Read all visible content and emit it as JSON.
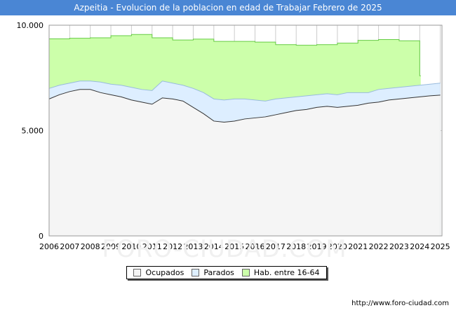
{
  "chart_data": {
    "type": "area",
    "title": "Azpeitia - Evolucion de la poblacion en edad de Trabajar Febrero de 2025",
    "xlabel": "",
    "ylabel": "",
    "xlim": [
      2006,
      2025.08
    ],
    "ylim": [
      0,
      10000
    ],
    "y_ticks": [
      0,
      5000,
      10000
    ],
    "y_tick_labels": [
      "0",
      "5.000",
      "10.000"
    ],
    "x_ticks": [
      2006,
      2007,
      2008,
      2009,
      2010,
      2011,
      2012,
      2013,
      2014,
      2015,
      2016,
      2017,
      2018,
      2019,
      2020,
      2021,
      2022,
      2023,
      2024,
      2025
    ],
    "x_tick_labels": [
      "2006",
      "2007",
      "2008",
      "2009",
      "2010",
      "2011",
      "2012",
      "2013",
      "2014",
      "2015",
      "2016",
      "2017",
      "2018",
      "2019",
      "2020",
      "2021",
      "2022",
      "2023",
      "2024",
      "2025"
    ],
    "grid": true,
    "series": [
      {
        "name": "Hab. entre 16-64",
        "color": "#ccffaa",
        "line_color": "#66cc44",
        "step": true,
        "x": [
          2006,
          2007,
          2008,
          2009,
          2010,
          2011,
          2012,
          2013,
          2014,
          2015,
          2016,
          2017,
          2018,
          2019,
          2020,
          2021,
          2022,
          2023,
          2024
        ],
        "values": [
          9350,
          9380,
          9400,
          9500,
          9560,
          9400,
          9300,
          9340,
          9230,
          9230,
          9200,
          9080,
          9050,
          9080,
          9150,
          9280,
          9320,
          9260,
          7600
        ]
      },
      {
        "name": "Parados",
        "color": "#ddeeff",
        "line_color": "#99bbdd",
        "x": [
          2006,
          2006.5,
          2007,
          2007.5,
          2008,
          2008.5,
          2009,
          2009.5,
          2010,
          2010.5,
          2011,
          2011.5,
          2012,
          2012.5,
          2013,
          2013.5,
          2014,
          2014.5,
          2015,
          2015.5,
          2016,
          2016.5,
          2017,
          2017.5,
          2018,
          2018.5,
          2019,
          2019.5,
          2020,
          2020.5,
          2021,
          2021.5,
          2022,
          2022.5,
          2023,
          2023.5,
          2024,
          2024.5,
          2025
        ],
        "values": [
          7000,
          7150,
          7250,
          7350,
          7350,
          7300,
          7200,
          7150,
          7050,
          6950,
          6900,
          7350,
          7250,
          7150,
          7000,
          6800,
          6500,
          6450,
          6500,
          6500,
          6450,
          6400,
          6500,
          6550,
          6600,
          6650,
          6700,
          6750,
          6700,
          6800,
          6800,
          6800,
          6950,
          7000,
          7050,
          7100,
          7150,
          7200,
          7250
        ]
      },
      {
        "name": "Ocupados",
        "color": "#f5f5f5",
        "line_color": "#333333",
        "x": [
          2006,
          2006.5,
          2007,
          2007.5,
          2008,
          2008.5,
          2009,
          2009.5,
          2010,
          2010.5,
          2011,
          2011.5,
          2012,
          2012.5,
          2013,
          2013.5,
          2014,
          2014.5,
          2015,
          2015.5,
          2016,
          2016.5,
          2017,
          2017.5,
          2018,
          2018.5,
          2019,
          2019.5,
          2020,
          2020.5,
          2021,
          2021.5,
          2022,
          2022.5,
          2023,
          2023.5,
          2024,
          2024.5,
          2025
        ],
        "values": [
          6500,
          6700,
          6850,
          6950,
          6950,
          6800,
          6700,
          6600,
          6450,
          6350,
          6250,
          6550,
          6500,
          6400,
          6100,
          5800,
          5450,
          5400,
          5450,
          5550,
          5600,
          5650,
          5750,
          5850,
          5950,
          6000,
          6100,
          6150,
          6100,
          6150,
          6200,
          6300,
          6350,
          6450,
          6500,
          6550,
          6600,
          6650,
          6680
        ]
      }
    ],
    "legend_position": "bottom-center"
  },
  "watermark": "FORO-CIUDAD.COM",
  "source_url": "http://www.foro-ciudad.com"
}
